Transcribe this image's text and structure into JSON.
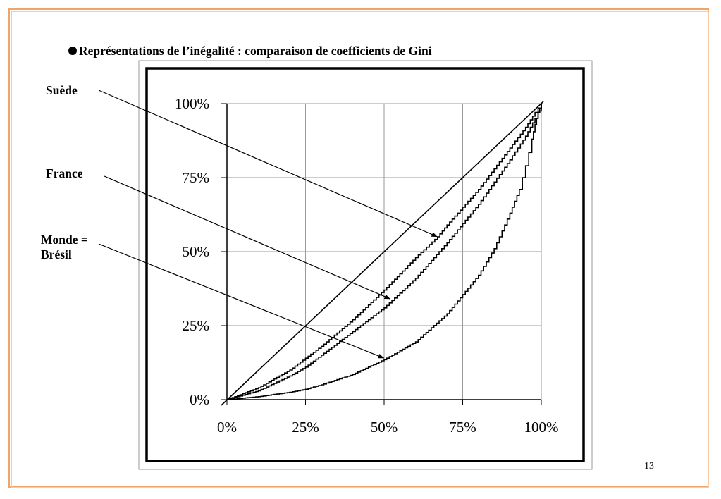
{
  "slide": {
    "title": "Représentations de l’inégalité : comparaison de coefficients de Gini",
    "page_number": "13",
    "frame_color": "#f0a468"
  },
  "chart_data": {
    "type": "line",
    "title": "",
    "xlabel": "",
    "ylabel": "",
    "xlim": [
      0,
      100
    ],
    "ylim": [
      0,
      100
    ],
    "grid": true,
    "x_ticks": [
      "0%",
      "25%",
      "50%",
      "75%",
      "100%"
    ],
    "y_ticks": [
      "0%",
      "25%",
      "50%",
      "75%",
      "100%"
    ],
    "annotations": [
      {
        "text": "Suède",
        "points_to": {
          "x": 67,
          "y": 55
        }
      },
      {
        "text": "France",
        "points_to": {
          "x": 52,
          "y": 34
        }
      },
      {
        "text": "Monde = Brésil",
        "points_to": {
          "x": 50,
          "y": 14
        }
      }
    ],
    "series": [
      {
        "style": "diagonal",
        "x": [
          0,
          100
        ],
        "y": [
          0,
          100
        ]
      },
      {
        "style": "step",
        "x": [
          0,
          10,
          20,
          25,
          30,
          40,
          50,
          60,
          67,
          70,
          80,
          90,
          95,
          98,
          100
        ],
        "y": [
          0,
          4,
          10,
          14,
          18,
          27,
          37,
          48,
          55,
          59,
          71,
          85,
          92,
          97,
          100
        ]
      },
      {
        "style": "step",
        "x": [
          0,
          10,
          20,
          25,
          30,
          40,
          50,
          60,
          70,
          80,
          90,
          95,
          98,
          100
        ],
        "y": [
          0,
          3,
          8,
          11,
          15,
          23,
          31,
          41,
          53,
          66,
          81,
          89,
          95,
          100
        ]
      },
      {
        "style": "step",
        "x": [
          0,
          10,
          20,
          25,
          30,
          40,
          50,
          60,
          70,
          80,
          85,
          90,
          93,
          95,
          97,
          98,
          99,
          100
        ],
        "y": [
          0,
          1,
          2.5,
          3.5,
          5,
          8.5,
          13.5,
          19.5,
          29,
          42,
          51,
          63,
          71,
          79,
          88,
          93,
          97,
          100
        ]
      }
    ]
  }
}
